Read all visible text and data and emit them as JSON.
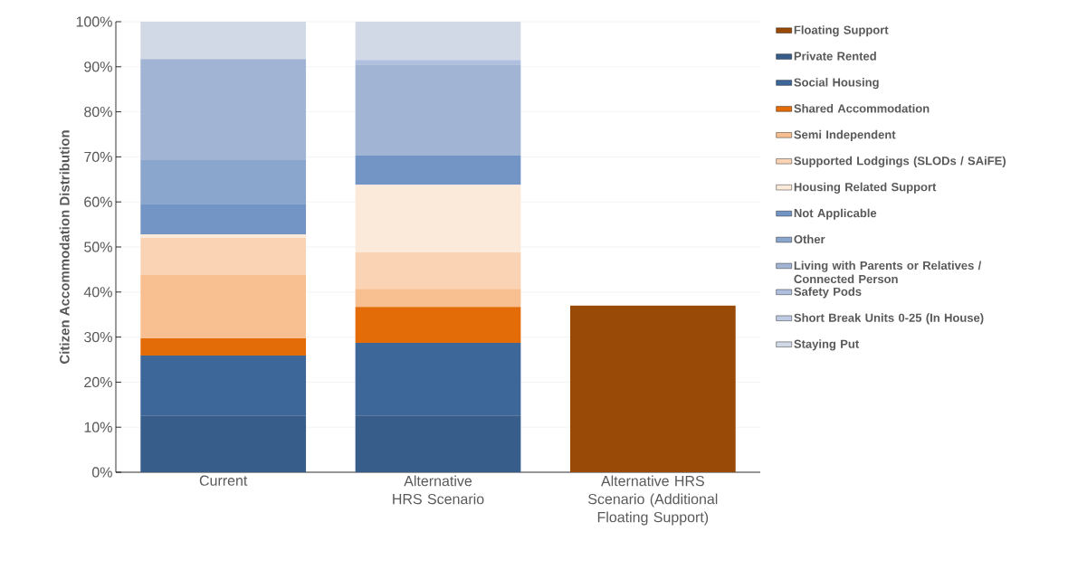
{
  "chart_data": {
    "type": "bar",
    "stacked": true,
    "ylabel": "Citizen Accommodation Distribution",
    "categories": [
      "Current",
      "Alternative HRS Scenario",
      "Alternative HRS Scenario (Additional Floating Support)"
    ],
    "ylim": [
      0,
      100
    ],
    "yticks": [
      {
        "value": 0,
        "label": "0%"
      },
      {
        "value": 10,
        "label": "10%"
      },
      {
        "value": 20,
        "label": "20%"
      },
      {
        "value": 30,
        "label": "30%"
      },
      {
        "value": 40,
        "label": "40%"
      },
      {
        "value": 50,
        "label": "50%"
      },
      {
        "value": 60,
        "label": "60%"
      },
      {
        "value": 70,
        "label": "70%"
      },
      {
        "value": 80,
        "label": "80%"
      },
      {
        "value": 90,
        "label": "90%"
      },
      {
        "value": 100,
        "label": "100%"
      }
    ],
    "grid": "y",
    "legend": "right",
    "series": [
      {
        "name": "Floating Support",
        "color": "#994a06",
        "values": [
          0,
          0,
          37
        ]
      },
      {
        "name": "Private Rented",
        "color": "#375d8b",
        "values": [
          12.6,
          12.6,
          0
        ]
      },
      {
        "name": "Social Housing",
        "color": "#3d6699",
        "values": [
          13.3,
          16.1,
          0
        ]
      },
      {
        "name": "Shared Accommodation",
        "color": "#e36c09",
        "values": [
          3.8,
          8.0,
          0
        ]
      },
      {
        "name": "Semi Independent",
        "color": "#f8bf91",
        "values": [
          14.2,
          4.0,
          0
        ]
      },
      {
        "name": "Supported Lodgings (SLODs / SAiFE)",
        "color": "#fad3b5",
        "values": [
          8.1,
          8.1,
          0
        ]
      },
      {
        "name": "Housing Related Support",
        "color": "#fbe9d9",
        "values": [
          0.8,
          15.0,
          0
        ]
      },
      {
        "name": "Not Applicable",
        "color": "#7395c5",
        "values": [
          6.8,
          6.6,
          0
        ]
      },
      {
        "name": "Other",
        "color": "#8ba6cd",
        "values": [
          9.7,
          0,
          0
        ]
      },
      {
        "name": "Living with Parents or Relatives / Connected Person",
        "color": "#a1b4d4",
        "values": [
          22.4,
          20.1,
          0
        ]
      },
      {
        "name": "Safety Pods",
        "color": "#afbfdd",
        "values": [
          0,
          1.0,
          0
        ]
      },
      {
        "name": "Short Break Units 0-25 (In House)",
        "color": "#bfcbe2",
        "values": [
          0,
          0,
          0
        ]
      },
      {
        "name": "Staying Put",
        "color": "#d1d8e6",
        "values": [
          8.3,
          8.5,
          0
        ]
      }
    ]
  }
}
